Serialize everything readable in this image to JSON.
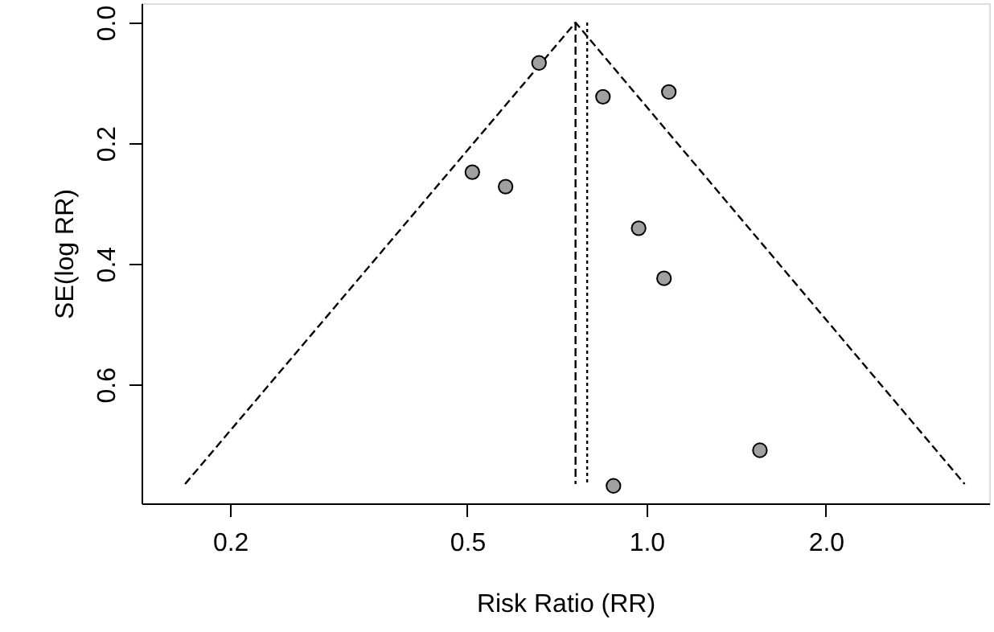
{
  "chart_data": {
    "type": "scatter",
    "xlabel": "Risk Ratio (RR)",
    "ylabel": "SE(log RR)",
    "log": "x",
    "xlim": [
      0.142,
      3.76
    ],
    "ylim": [
      0.797,
      -0.032
    ],
    "xticks": [
      0.2,
      0.5,
      {
        "value": 1,
        "label": "1.0"
      },
      {
        "value": 2,
        "label": "2.0"
      }
    ],
    "yticks": [
      {
        "value": 0,
        "label": "0.0"
      },
      0.2,
      0.4,
      0.6
    ],
    "grid": false,
    "series": [
      {
        "type": "line",
        "color": "#000000",
        "line_style": "dashed",
        "marker": "none",
        "x": [
          0.168,
          0.76,
          3.42
        ],
        "values": [
          0.765,
          0,
          0.765
        ]
      },
      {
        "type": "line",
        "color": "#000000",
        "line_style": "dashed",
        "marker": "none",
        "x": [
          0.76,
          0.76
        ],
        "values": [
          0,
          0.765
        ]
      },
      {
        "type": "line",
        "color": "#000000",
        "line_style": "dotted",
        "marker": "none",
        "x": [
          0.795,
          0.795
        ],
        "values": [
          0,
          0.765
        ]
      },
      {
        "color": "#a0a0a0",
        "marker": "circle",
        "x": [
          0.66,
          0.845,
          1.09,
          0.51,
          0.58,
          0.97,
          1.07,
          1.55,
          0.88
        ],
        "values": [
          0.067,
          0.123,
          0.115,
          0.248,
          0.272,
          0.341,
          0.424,
          0.709,
          0.768
        ]
      }
    ]
  }
}
